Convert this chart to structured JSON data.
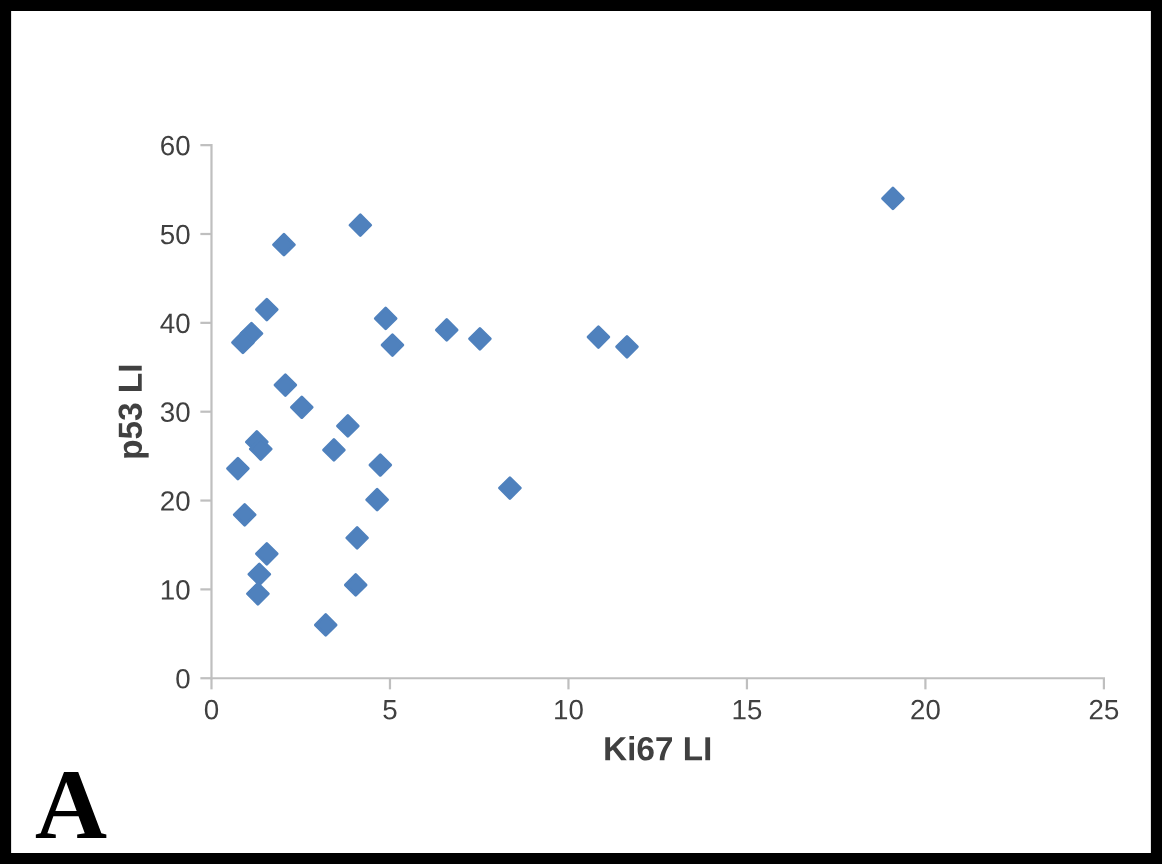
{
  "chart_data": {
    "type": "scatter",
    "xlabel": "Ki67 LI",
    "ylabel": "p53 LI",
    "annotations": [
      "A"
    ],
    "x": [
      4.17,
      2.03,
      1.55,
      4.88,
      6.59,
      7.52,
      1.12,
      0.88,
      5.07,
      2.07,
      2.53,
      3.82,
      1.27,
      1.38,
      3.43,
      0.74,
      4.73,
      4.64,
      8.36,
      0.93,
      4.08,
      1.55,
      1.34,
      1.3,
      4.04,
      3.2,
      10.84,
      11.64,
      19.09
    ],
    "series": [
      {
        "color": "#4f81bd",
        "values": [
          51.0,
          48.8,
          41.5,
          40.5,
          39.2,
          38.2,
          38.8,
          37.8,
          37.5,
          33.0,
          30.5,
          28.4,
          26.6,
          25.8,
          25.7,
          23.6,
          24.0,
          20.1,
          21.4,
          18.4,
          15.8,
          14.0,
          11.7,
          9.5,
          10.5,
          6.0,
          38.4,
          37.3,
          54.0
        ]
      }
    ],
    "xlim": [
      0,
      25
    ],
    "xticks": [
      0,
      5,
      10,
      15,
      20,
      25
    ],
    "ylim": [
      0,
      60
    ],
    "yticks": [
      0,
      10,
      20,
      30,
      40,
      50,
      60
    ],
    "marker": "diamond",
    "grid": false,
    "legend": false
  }
}
